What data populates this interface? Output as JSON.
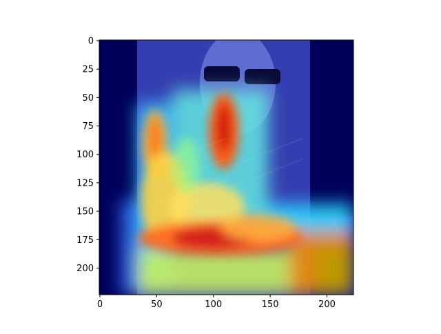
{
  "chart_data": {
    "type": "heatmap",
    "title": "",
    "xlabel": "",
    "ylabel": "",
    "xlim": [
      0,
      224
    ],
    "ylim": [
      224,
      0
    ],
    "x_ticks": [
      0,
      50,
      100,
      150,
      200
    ],
    "y_ticks": [
      0,
      25,
      50,
      75,
      100,
      125,
      150,
      175,
      200
    ],
    "grid": false,
    "colormap": "jet",
    "hotspots": [
      {
        "x": 110,
        "y": 85,
        "intensity": 0.95
      },
      {
        "x": 110,
        "y": 175,
        "intensity": 1.0
      },
      {
        "x": 48,
        "y": 95,
        "intensity": 0.7
      },
      {
        "x": 180,
        "y": 185,
        "intensity": 0.85
      }
    ]
  }
}
